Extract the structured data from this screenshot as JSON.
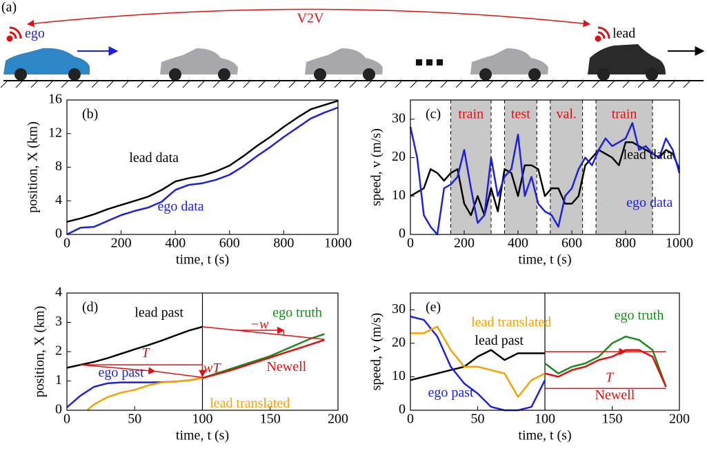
{
  "panel_a": {
    "label": "(a)",
    "link": "V2V",
    "ego": "ego",
    "lead": "lead"
  },
  "chart_data": [
    {
      "type": "line",
      "panel_label": "(b)",
      "x_label": "time, t (s)",
      "y_label": "position, X (km)",
      "xlim": [
        0,
        1000
      ],
      "xticks": [
        0,
        200,
        400,
        600,
        800,
        1000
      ],
      "ylim": [
        0,
        16
      ],
      "yticks": [
        0,
        4,
        8,
        12,
        16
      ],
      "x": [
        0,
        50,
        100,
        150,
        200,
        250,
        300,
        350,
        400,
        450,
        500,
        550,
        600,
        650,
        700,
        750,
        800,
        850,
        900,
        950,
        1000
      ],
      "series": [
        {
          "name": "lead data",
          "color": "#000000",
          "values": [
            1.5,
            1.9,
            2.4,
            3.0,
            3.5,
            4.0,
            4.5,
            5.3,
            6.3,
            6.7,
            7.0,
            7.5,
            8.2,
            9.3,
            10.5,
            11.6,
            12.8,
            13.9,
            14.9,
            15.4,
            15.9
          ]
        },
        {
          "name": "ego data",
          "color": "#1f1fe0",
          "values": [
            0,
            0.8,
            0.9,
            1.6,
            2.3,
            2.8,
            3.2,
            3.9,
            5.3,
            5.9,
            6.1,
            6.5,
            7.1,
            8.1,
            9.3,
            10.4,
            11.6,
            12.7,
            13.8,
            14.5,
            15.1
          ]
        }
      ]
    },
    {
      "type": "line",
      "panel_label": "(c)",
      "x_label": "time, t (s)",
      "y_label": "speed, v (m/s)",
      "xlim": [
        0,
        1000
      ],
      "xticks": [
        0,
        200,
        400,
        600,
        800,
        1000
      ],
      "ylim": [
        0,
        35
      ],
      "yticks": [
        0,
        10,
        20,
        30
      ],
      "regions": [
        {
          "label": "train",
          "range": [
            150,
            300
          ]
        },
        {
          "label": "test",
          "range": [
            350,
            470
          ]
        },
        {
          "label": "val.",
          "range": [
            520,
            640
          ]
        },
        {
          "label": "train",
          "range": [
            690,
            900
          ]
        }
      ],
      "x": [
        0,
        25,
        50,
        75,
        100,
        125,
        150,
        175,
        200,
        225,
        250,
        275,
        300,
        325,
        350,
        375,
        400,
        425,
        450,
        475,
        500,
        525,
        550,
        575,
        600,
        625,
        650,
        675,
        700,
        725,
        750,
        775,
        800,
        825,
        850,
        875,
        900,
        925,
        950,
        975,
        1000
      ],
      "series": [
        {
          "name": "lead data",
          "color": "#000000",
          "values": [
            10,
            11,
            12,
            17,
            16,
            14,
            16,
            17,
            8,
            5,
            10,
            5,
            12,
            6,
            17,
            16,
            10,
            18,
            18,
            17,
            10,
            12,
            12,
            8,
            8,
            10,
            18,
            20,
            22,
            21,
            20,
            18,
            24,
            24,
            23,
            22,
            21,
            20,
            22,
            21,
            17
          ]
        },
        {
          "name": "ego data",
          "color": "#1f1fe0",
          "values": [
            28,
            20,
            5,
            2,
            0,
            12,
            13,
            15,
            22,
            12,
            3,
            5,
            20,
            10,
            15,
            17,
            26,
            10,
            15,
            8,
            6,
            5,
            2,
            10,
            12,
            17,
            20,
            18,
            22,
            25,
            23,
            24,
            25,
            29,
            22,
            23,
            21,
            20,
            25,
            22,
            16
          ]
        }
      ]
    },
    {
      "type": "line",
      "panel_label": "(d)",
      "x_label": "time, t (s)",
      "y_label": "position, X (km)",
      "xlim": [
        0,
        200
      ],
      "xticks": [
        0,
        50,
        100,
        150,
        200
      ],
      "ylim": [
        0,
        4
      ],
      "yticks": [
        0,
        1,
        2,
        3,
        4
      ],
      "divider_x": 100,
      "annotations": [
        "T",
        "wT",
        "−w"
      ],
      "series": [
        {
          "name": "lead past",
          "color": "#000000",
          "x": [
            0,
            10,
            20,
            30,
            40,
            50,
            60,
            70,
            80,
            90,
            100
          ],
          "values": [
            1.45,
            1.55,
            1.65,
            1.78,
            1.93,
            2.08,
            2.22,
            2.38,
            2.55,
            2.72,
            2.85
          ]
        },
        {
          "name": "ego past",
          "color": "#1f1fe0",
          "x": [
            0,
            10,
            20,
            30,
            40,
            50,
            60,
            70,
            80,
            90,
            100
          ],
          "values": [
            0.1,
            0.5,
            0.8,
            0.92,
            0.95,
            0.95,
            0.95,
            0.96,
            0.98,
            1.02,
            1.1
          ]
        },
        {
          "name": "lead translated",
          "color": "#f5a300",
          "x": [
            15,
            20,
            30,
            40,
            50,
            60,
            70,
            80,
            90,
            100
          ],
          "values": [
            0,
            0.2,
            0.45,
            0.6,
            0.7,
            0.85,
            0.95,
            0.98,
            1.02,
            1.1
          ]
        },
        {
          "name": "ego truth",
          "color": "#1a8a1a",
          "x": [
            100,
            110,
            120,
            130,
            140,
            150,
            160,
            170,
            180,
            190
          ],
          "values": [
            1.1,
            1.25,
            1.4,
            1.55,
            1.7,
            1.85,
            2.05,
            2.25,
            2.45,
            2.6
          ]
        },
        {
          "name": "Newell",
          "color": "#e01010",
          "x": [
            100,
            110,
            120,
            130,
            140,
            150,
            160,
            170,
            180,
            190
          ],
          "values": [
            1.1,
            1.22,
            1.35,
            1.5,
            1.65,
            1.8,
            1.95,
            2.1,
            2.25,
            2.4
          ]
        }
      ]
    },
    {
      "type": "line",
      "panel_label": "(e)",
      "x_label": "time, t (s)",
      "y_label": "speed, v (m/s)",
      "xlim": [
        0,
        200
      ],
      "xticks": [
        0,
        50,
        100,
        150,
        200
      ],
      "ylim": [
        0,
        35
      ],
      "yticks": [
        0,
        10,
        20,
        30
      ],
      "divider_x": 100,
      "annotations": [
        "T"
      ],
      "series": [
        {
          "name": "lead past",
          "color": "#000000",
          "x": [
            0,
            10,
            20,
            30,
            40,
            50,
            60,
            70,
            80,
            90,
            100
          ],
          "values": [
            9,
            10,
            11,
            12,
            13,
            16,
            18,
            15,
            17,
            17,
            17
          ]
        },
        {
          "name": "ego past",
          "color": "#1f1fe0",
          "x": [
            0,
            10,
            20,
            30,
            40,
            50,
            60,
            70,
            80,
            90,
            100
          ],
          "values": [
            28,
            27,
            22,
            13,
            8,
            5,
            1,
            0,
            0,
            1,
            9
          ]
        },
        {
          "name": "lead translated",
          "color": "#f5a300",
          "x": [
            0,
            10,
            20,
            30,
            40,
            50,
            60,
            70,
            80,
            90,
            100
          ],
          "values": [
            23,
            23,
            25,
            18,
            13,
            13,
            12,
            11,
            4,
            9,
            11
          ]
        },
        {
          "name": "ego truth",
          "color": "#1a8a1a",
          "x": [
            100,
            110,
            120,
            130,
            140,
            150,
            160,
            170,
            180,
            190
          ],
          "values": [
            14,
            11,
            13,
            14,
            16,
            20,
            22,
            21,
            18,
            7
          ]
        },
        {
          "name": "Newell",
          "color": "#e01010",
          "x": [
            100,
            110,
            120,
            130,
            140,
            150,
            160,
            170,
            180,
            190
          ],
          "values": [
            11,
            10,
            12,
            13,
            15,
            16,
            18,
            18,
            16,
            7
          ]
        }
      ]
    }
  ]
}
